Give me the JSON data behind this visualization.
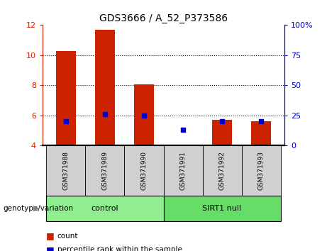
{
  "title": "GDS3666 / A_52_P373586",
  "samples": [
    "GSM371988",
    "GSM371989",
    "GSM371990",
    "GSM371991",
    "GSM371992",
    "GSM371993"
  ],
  "counts": [
    10.3,
    11.7,
    8.05,
    4.07,
    5.7,
    5.6
  ],
  "percentiles": [
    20,
    26,
    25,
    13,
    20,
    20
  ],
  "ylim_left": [
    4,
    12
  ],
  "ylim_right": [
    0,
    100
  ],
  "yticks_left": [
    4,
    6,
    8,
    10,
    12
  ],
  "yticks_right": [
    0,
    25,
    50,
    75,
    100
  ],
  "ytick_labels_right": [
    "0",
    "25",
    "50",
    "75",
    "100%"
  ],
  "groups": [
    {
      "label": "control",
      "indices": [
        0,
        1,
        2
      ],
      "color": "#90EE90"
    },
    {
      "label": "SIRT1 null",
      "indices": [
        3,
        4,
        5
      ],
      "color": "#66DD66"
    }
  ],
  "bar_color": "#CC2200",
  "dot_color": "#0000CC",
  "bar_width": 0.5,
  "background_plot": "#FFFFFF",
  "background_label": "#D0D0D0",
  "left_axis_color": "#CC2200",
  "right_axis_color": "#0000CC",
  "legend_items": [
    "count",
    "percentile rank within the sample"
  ],
  "genotype_label": "genotype/variation"
}
